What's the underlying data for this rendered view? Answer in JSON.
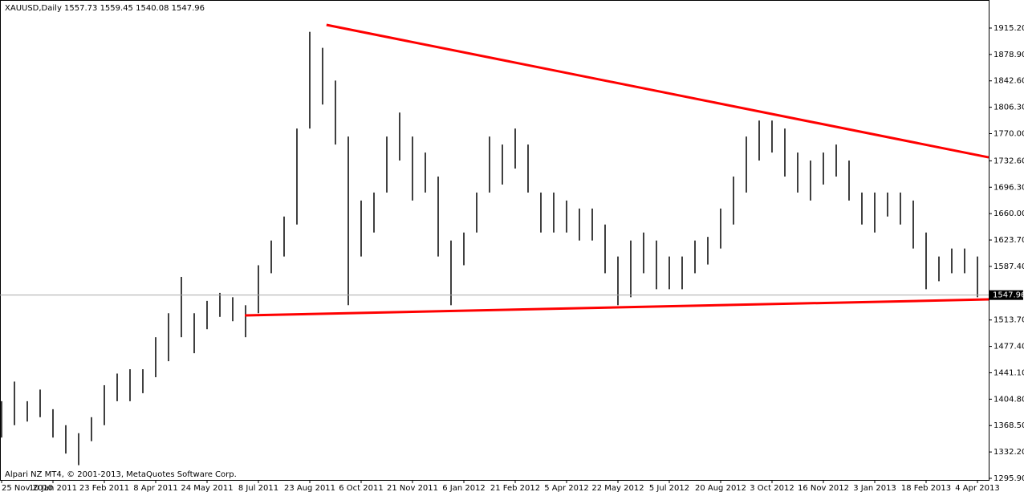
{
  "chart_data": {
    "type": "ohlc",
    "title": "XAUUSD,Daily  1557.73 1559.45 1540.08 1547.96",
    "footer": "Alpari NZ MT4, © 2001-2013, MetaQuotes Software Corp.",
    "categories": [
      "25 Nov 2010",
      null,
      null,
      null,
      "10 Jan 2011",
      null,
      null,
      null,
      "23 Feb 2011",
      null,
      null,
      null,
      "8 Apr 2011",
      null,
      null,
      null,
      "24 May 2011",
      null,
      null,
      null,
      "8 Jul 2011",
      null,
      null,
      null,
      "23 Aug 2011",
      null,
      null,
      null,
      "6 Oct 2011",
      null,
      null,
      null,
      "21 Nov 2011",
      null,
      null,
      null,
      "6 Jan 2012",
      null,
      null,
      null,
      "21 Feb 2012",
      null,
      null,
      null,
      "5 Apr 2012",
      null,
      null,
      null,
      "22 May 2012",
      null,
      null,
      null,
      "5 Jul 2012",
      null,
      null,
      null,
      "20 Aug 2012",
      null,
      null,
      null,
      "3 Oct 2012",
      null,
      null,
      null,
      "16 Nov 2012",
      null,
      null,
      null,
      "3 Jan 2013",
      null,
      null,
      null,
      "18 Feb 2013",
      null,
      null,
      null,
      "4 Apr 2013"
    ],
    "series": [
      {
        "name": "High",
        "color": "#000000",
        "values": [
          1402,
          1429,
          1402,
          1418,
          1391,
          1369,
          1358,
          1380,
          1424,
          1440,
          1446,
          1446,
          1490,
          1523,
          1573,
          1523,
          1540,
          1551,
          1545,
          1534,
          1589,
          1623,
          1656,
          1777,
          1910,
          1888,
          1843,
          1766,
          1678,
          1689,
          1766,
          1799,
          1766,
          1744,
          1711,
          1623,
          1634,
          1689,
          1766,
          1755,
          1777,
          1755,
          1689,
          1689,
          1678,
          1667,
          1667,
          1645,
          1601,
          1623,
          1634,
          1623,
          1601,
          1601,
          1623,
          1628,
          1667,
          1711,
          1766,
          1788,
          1788,
          1777,
          1744,
          1733,
          1744,
          1755,
          1733,
          1689,
          1689,
          1689,
          1689,
          1678,
          1634,
          1601,
          1612,
          1612,
          1601
        ]
      },
      {
        "name": "Low",
        "color": "#000000",
        "values": [
          1352,
          1369,
          1374,
          1380,
          1352,
          1330,
          1314,
          1347,
          1369,
          1402,
          1402,
          1413,
          1435,
          1457,
          1490,
          1468,
          1501,
          1518,
          1512,
          1490,
          1523,
          1578,
          1601,
          1645,
          1777,
          1810,
          1755,
          1534,
          1601,
          1634,
          1689,
          1733,
          1678,
          1689,
          1601,
          1534,
          1589,
          1634,
          1689,
          1700,
          1722,
          1689,
          1634,
          1634,
          1634,
          1623,
          1623,
          1578,
          1534,
          1545,
          1578,
          1556,
          1556,
          1556,
          1578,
          1590,
          1612,
          1645,
          1689,
          1733,
          1744,
          1711,
          1689,
          1678,
          1700,
          1711,
          1678,
          1645,
          1634,
          1656,
          1645,
          1612,
          1556,
          1567,
          1578,
          1578,
          1545
        ]
      }
    ],
    "trendlines": [
      {
        "color": "#ff0000",
        "x": [
          25.3,
          76.875
        ],
        "values": [
          1919.6,
          1737.4
        ]
      },
      {
        "color": "#ff0000",
        "x": [
          18.94,
          76.875
        ],
        "values": [
          1520,
          1542
        ]
      }
    ],
    "last_price": {
      "value": 1547.96,
      "label": "1547.96"
    },
    "ylim": [
      1293.7,
      1953.8
    ],
    "yticks": [
      {
        "value": 1915.2,
        "label": "1915.20"
      },
      {
        "value": 1878.9,
        "label": "1878.90"
      },
      {
        "value": 1842.6,
        "label": "1842.60"
      },
      {
        "value": 1806.3,
        "label": "1806.30"
      },
      {
        "value": 1770,
        "label": "1770.00"
      },
      {
        "value": 1732.6,
        "label": "1732.60"
      },
      {
        "value": 1696.3,
        "label": "1696.30"
      },
      {
        "value": 1660,
        "label": "1660.00"
      },
      {
        "value": 1623.7,
        "label": "1623.70"
      },
      {
        "value": 1587.4,
        "label": "1587.40"
      },
      {
        "value": 1513.7,
        "label": "1513.70"
      },
      {
        "value": 1477.4,
        "label": "1477.40"
      },
      {
        "value": 1441.1,
        "label": "1441.10"
      },
      {
        "value": 1404.8,
        "label": "1404.80"
      },
      {
        "value": 1368.5,
        "label": "1368.50"
      },
      {
        "value": 1332.2,
        "label": "1332.20"
      },
      {
        "value": 1295.9,
        "label": "1295.90"
      }
    ]
  }
}
